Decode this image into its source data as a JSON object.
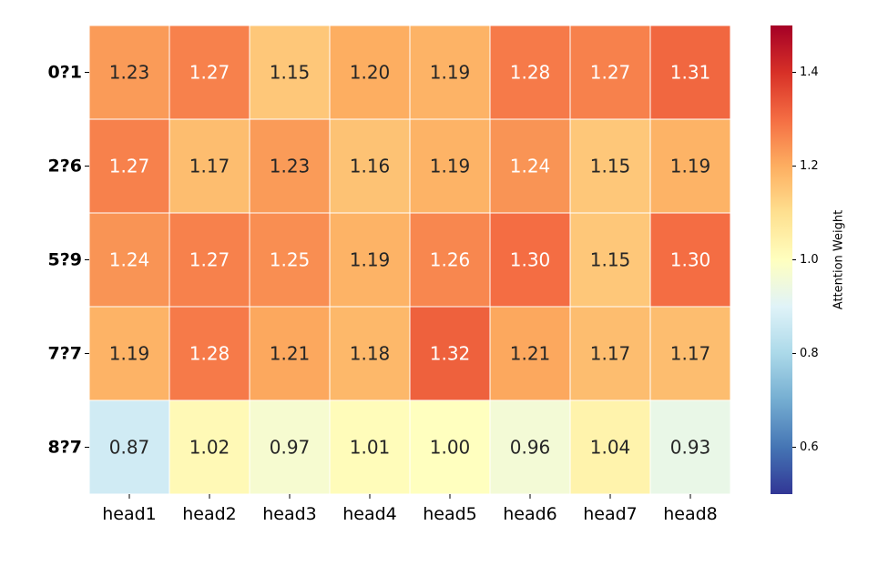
{
  "chart_data": {
    "type": "heatmap",
    "title": "",
    "xlabel": "",
    "ylabel": "",
    "x_categories": [
      "head1",
      "head2",
      "head3",
      "head4",
      "head5",
      "head6",
      "head7",
      "head8"
    ],
    "y_categories": [
      "0?1",
      "2?6",
      "5?9",
      "7?7",
      "8?7"
    ],
    "values": [
      [
        1.23,
        1.27,
        1.15,
        1.2,
        1.19,
        1.28,
        1.27,
        1.31
      ],
      [
        1.27,
        1.17,
        1.23,
        1.16,
        1.19,
        1.24,
        1.15,
        1.19
      ],
      [
        1.24,
        1.27,
        1.25,
        1.19,
        1.26,
        1.3,
        1.15,
        1.3
      ],
      [
        1.19,
        1.28,
        1.21,
        1.18,
        1.32,
        1.21,
        1.17,
        1.17
      ],
      [
        0.87,
        1.02,
        0.97,
        1.01,
        1.0,
        0.96,
        1.04,
        0.93
      ]
    ],
    "value_labels": [
      [
        "1.23",
        "1.27",
        "1.15",
        "1.20",
        "1.19",
        "1.28",
        "1.27",
        "1.31"
      ],
      [
        "1.27",
        "1.17",
        "1.23",
        "1.16",
        "1.19",
        "1.24",
        "1.15",
        "1.19"
      ],
      [
        "1.24",
        "1.27",
        "1.25",
        "1.19",
        "1.26",
        "1.30",
        "1.15",
        "1.30"
      ],
      [
        "1.19",
        "1.28",
        "1.21",
        "1.18",
        "1.32",
        "1.21",
        "1.17",
        "1.17"
      ],
      [
        "0.87",
        "1.02",
        "0.97",
        "1.01",
        "1.00",
        "0.96",
        "1.04",
        "0.93"
      ]
    ],
    "colormap": "RdYlBu_r",
    "vmin": 0.5,
    "vmax": 1.5,
    "colorbar": {
      "label": "Attention Weight",
      "ticks": [
        0.6,
        0.8,
        1.0,
        1.2,
        1.4
      ],
      "tick_labels": [
        "0.6",
        "0.8",
        "1.0",
        "1.2",
        "1.4"
      ]
    }
  }
}
